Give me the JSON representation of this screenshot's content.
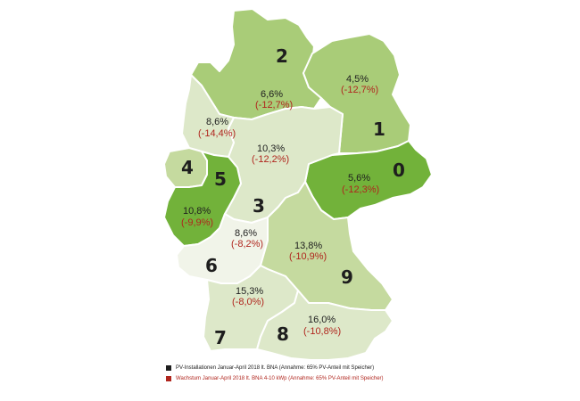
{
  "colors": {
    "very_light": "#f1f4e9",
    "light": "#dde8c9",
    "medium_light": "#c5da9f",
    "medium": "#a9cc78",
    "strong": "#72b23a",
    "legend_black": "#1e1e1e",
    "legend_red": "#b0261e"
  },
  "regions": [
    {
      "number": "0",
      "share": "5,6%",
      "growth": "(-12,3%)",
      "fill_class": "strong"
    },
    {
      "number": "1",
      "share": "4,5%",
      "growth": "(-12,7%)",
      "fill_class": "medium"
    },
    {
      "number": "2",
      "share": "6,6%",
      "growth": "(-12,7%)",
      "fill_class": "medium"
    },
    {
      "number": "3",
      "share": "10,3%",
      "growth": "(-12,2%)",
      "fill_class": "light"
    },
    {
      "number": "4",
      "share": "",
      "growth": "",
      "fill_class": "medium_light"
    },
    {
      "number": "5",
      "share": "10,8%",
      "growth": "(-9,9%)",
      "fill_class": "strong"
    },
    {
      "number": "6",
      "share": "8,6%",
      "growth": "(-8,2%)",
      "fill_class": "very_light"
    },
    {
      "number": "7",
      "share": "15,3%",
      "growth": "(-8,0%)",
      "fill_class": "light"
    },
    {
      "number": "8",
      "share": "16,0%",
      "growth": "(-10,8%)",
      "fill_class": "light"
    },
    {
      "number": "9",
      "share": "13,8%",
      "growth": "(-10,9%)",
      "fill_class": "medium_light"
    },
    {
      "number": "",
      "share": "8,6%",
      "growth": "(-14,4%)",
      "fill_class": "light"
    }
  ],
  "legend": [
    {
      "text": "PV-Installationen Januar-April 2018 lt. BNA (Annahme: 65% PV-Anteil mit Speicher)",
      "color": "#1e1e1e"
    },
    {
      "text": "Wachstum Januar-April 2018 lt. BNA 4-10 kWp (Annahme: 65% PV-Anteil mit Speicher)",
      "color": "#b0261e"
    }
  ]
}
